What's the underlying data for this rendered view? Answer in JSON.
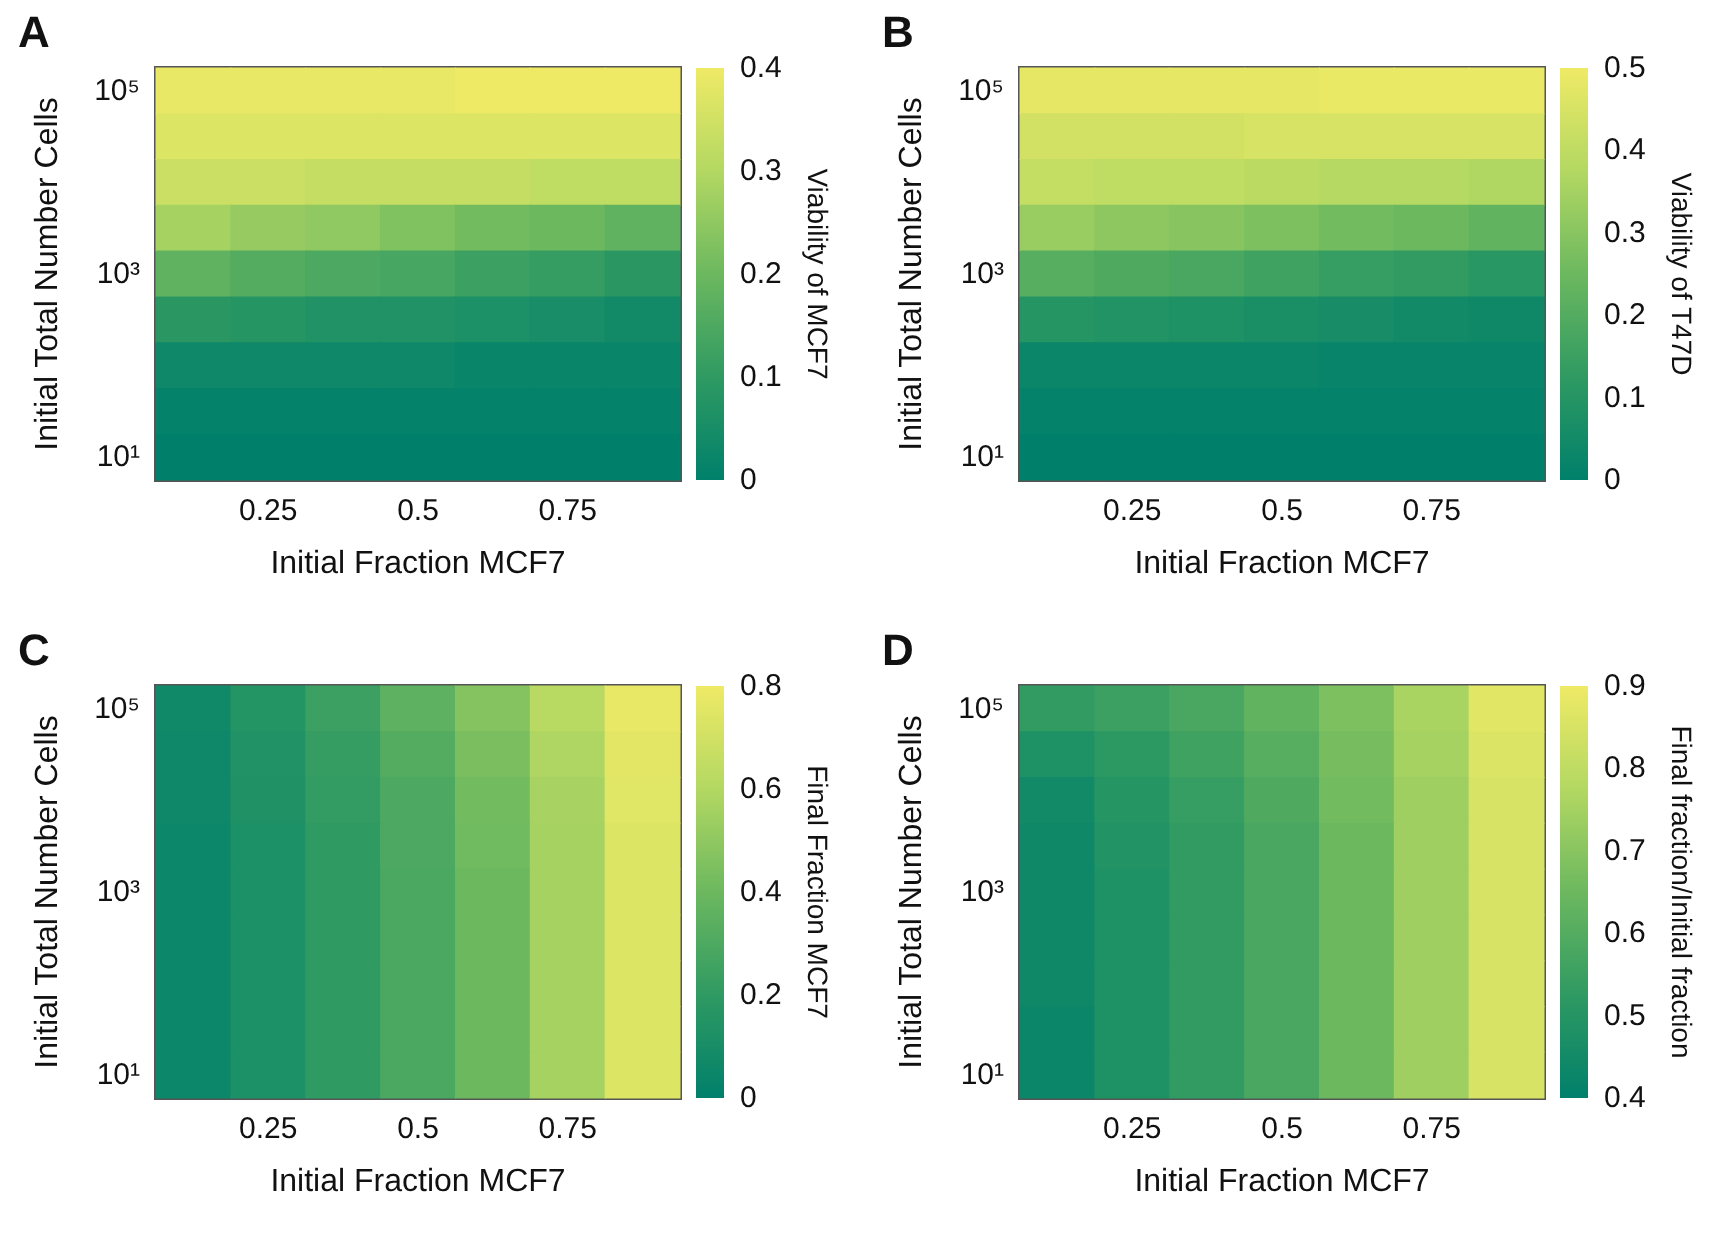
{
  "chart_data": [
    {
      "type": "heatmap",
      "title": "A",
      "xlabel": "Initial Fraction MCF7",
      "ylabel": "Initial Total Number Cells",
      "clabel": "Viability of MCF7",
      "clim": [
        0,
        0.4
      ],
      "cticks": [
        0,
        0.1,
        0.2,
        0.3,
        0.4
      ],
      "categories": [
        null,
        "0.25",
        null,
        "0.5",
        null,
        "0.75",
        null
      ],
      "y_categories": [
        "10⁵",
        null,
        null,
        null,
        "10³",
        null,
        null,
        null,
        "10¹"
      ],
      "cells": [
        [
          0.39,
          0.39,
          0.39,
          0.39,
          0.4,
          0.4,
          0.4
        ],
        [
          0.37,
          0.37,
          0.37,
          0.37,
          0.37,
          0.37,
          0.37
        ],
        [
          0.34,
          0.34,
          0.33,
          0.33,
          0.33,
          0.32,
          0.32
        ],
        [
          0.28,
          0.26,
          0.25,
          0.23,
          0.21,
          0.2,
          0.18
        ],
        [
          0.18,
          0.16,
          0.15,
          0.14,
          0.12,
          0.11,
          0.09
        ],
        [
          0.09,
          0.08,
          0.07,
          0.07,
          0.06,
          0.05,
          0.04
        ],
        [
          0.03,
          0.03,
          0.03,
          0.03,
          0.02,
          0.02,
          0.02
        ],
        [
          0.01,
          0.01,
          0.01,
          0.01,
          0.01,
          0.01,
          0.01
        ],
        [
          0,
          0,
          0,
          0,
          0,
          0,
          0
        ]
      ]
    },
    {
      "type": "heatmap",
      "title": "B",
      "xlabel": "Initial Fraction MCF7",
      "ylabel": "Initial Total Number Cells",
      "clabel": "Viability of T47D",
      "clim": [
        0,
        0.5
      ],
      "cticks": [
        0,
        0.1,
        0.2,
        0.3,
        0.4,
        0.5
      ],
      "categories": [
        null,
        "0.25",
        null,
        "0.5",
        null,
        "0.75",
        null
      ],
      "y_categories": [
        "10⁵",
        null,
        null,
        null,
        "10³",
        null,
        null,
        null,
        "10¹"
      ],
      "cells": [
        [
          0.48,
          0.48,
          0.48,
          0.48,
          0.49,
          0.49,
          0.49
        ],
        [
          0.44,
          0.44,
          0.44,
          0.45,
          0.45,
          0.45,
          0.45
        ],
        [
          0.41,
          0.4,
          0.4,
          0.39,
          0.38,
          0.38,
          0.37
        ],
        [
          0.33,
          0.31,
          0.3,
          0.28,
          0.26,
          0.25,
          0.23
        ],
        [
          0.21,
          0.19,
          0.18,
          0.16,
          0.14,
          0.13,
          0.11
        ],
        [
          0.1,
          0.09,
          0.08,
          0.07,
          0.06,
          0.05,
          0.04
        ],
        [
          0.03,
          0.03,
          0.03,
          0.03,
          0.02,
          0.02,
          0.02
        ],
        [
          0.01,
          0.01,
          0.01,
          0.01,
          0.01,
          0.01,
          0.01
        ],
        [
          0,
          0,
          0,
          0,
          0,
          0,
          0
        ]
      ]
    },
    {
      "type": "heatmap",
      "title": "C",
      "xlabel": "Initial Fraction MCF7",
      "ylabel": "Initial Total Number Cells",
      "clabel": "Final Fraction MCF7",
      "clim": [
        0,
        0.8
      ],
      "cticks": [
        0,
        0.2,
        0.4,
        0.6,
        0.8
      ],
      "categories": [
        null,
        "0.25",
        null,
        "0.5",
        null,
        "0.75",
        null
      ],
      "y_categories": [
        "10⁵",
        null,
        null,
        null,
        "10³",
        null,
        null,
        null,
        "10¹"
      ],
      "cells": [
        [
          0.07,
          0.15,
          0.24,
          0.35,
          0.47,
          0.62,
          0.78
        ],
        [
          0.06,
          0.14,
          0.22,
          0.32,
          0.44,
          0.59,
          0.76
        ],
        [
          0.06,
          0.13,
          0.21,
          0.3,
          0.42,
          0.57,
          0.75
        ],
        [
          0.05,
          0.12,
          0.2,
          0.3,
          0.41,
          0.56,
          0.74
        ],
        [
          0.05,
          0.12,
          0.2,
          0.29,
          0.4,
          0.56,
          0.74
        ],
        [
          0.05,
          0.12,
          0.2,
          0.29,
          0.4,
          0.56,
          0.74
        ],
        [
          0.05,
          0.12,
          0.2,
          0.29,
          0.4,
          0.56,
          0.74
        ],
        [
          0.05,
          0.12,
          0.2,
          0.29,
          0.4,
          0.56,
          0.74
        ],
        [
          0.05,
          0.12,
          0.2,
          0.29,
          0.4,
          0.56,
          0.74
        ]
      ]
    },
    {
      "type": "heatmap",
      "title": "D",
      "xlabel": "Initial Fraction MCF7",
      "ylabel": "Initial Total Number Cells",
      "clabel": "Final fraction/Initial fraction",
      "clim": [
        0.4,
        0.9
      ],
      "cticks": [
        0.4,
        0.5,
        0.6,
        0.7,
        0.8,
        0.9
      ],
      "categories": [
        null,
        "0.25",
        null,
        "0.5",
        null,
        "0.75",
        null
      ],
      "y_categories": [
        "10⁵",
        null,
        null,
        null,
        "10³",
        null,
        null,
        null,
        "10¹"
      ],
      "cells": [
        [
          0.53,
          0.55,
          0.58,
          0.63,
          0.68,
          0.76,
          0.87
        ],
        [
          0.48,
          0.52,
          0.56,
          0.61,
          0.67,
          0.75,
          0.86
        ],
        [
          0.45,
          0.5,
          0.54,
          0.59,
          0.66,
          0.74,
          0.85
        ],
        [
          0.44,
          0.49,
          0.53,
          0.58,
          0.65,
          0.74,
          0.85
        ],
        [
          0.44,
          0.48,
          0.53,
          0.58,
          0.65,
          0.74,
          0.85
        ],
        [
          0.44,
          0.48,
          0.53,
          0.58,
          0.65,
          0.74,
          0.85
        ],
        [
          0.44,
          0.48,
          0.53,
          0.58,
          0.65,
          0.74,
          0.85
        ],
        [
          0.43,
          0.48,
          0.53,
          0.58,
          0.65,
          0.74,
          0.85
        ],
        [
          0.43,
          0.48,
          0.53,
          0.58,
          0.65,
          0.74,
          0.85
        ]
      ]
    }
  ]
}
